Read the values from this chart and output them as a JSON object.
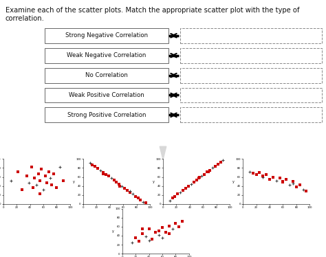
{
  "title_text": "Examine each of the scatter plots. Match the appropriate scatter plot with the type of\ncorrelation.",
  "labels": [
    "Strong Negative Correlation",
    "Weak Negative Correlation",
    "No Correlation",
    "Weak Positive Correlation",
    "Strong Positive Correlation"
  ],
  "top_bg": "#ffffff",
  "bottom_bg": "#d8d8d8",
  "fig_bg": "#ffffff",
  "scatter_red": "#cc0000",
  "scatter_cross": "#555555",
  "plots_order": [
    "no_corr",
    "strong_neg",
    "strong_pos",
    "weak_neg",
    "weak_pos"
  ],
  "plots": {
    "no_corr": {
      "x": [
        12,
        22,
        28,
        35,
        38,
        42,
        45,
        47,
        50,
        53,
        55,
        57,
        60,
        63,
        65,
        68,
        70,
        72,
        75,
        80,
        85,
        90,
        55
      ],
      "y": [
        52,
        72,
        32,
        62,
        47,
        82,
        37,
        57,
        42,
        67,
        52,
        77,
        32,
        62,
        47,
        72,
        57,
        42,
        67,
        37,
        82,
        52,
        22
      ]
    },
    "strong_neg": {
      "x": [
        10,
        14,
        18,
        22,
        26,
        30,
        34,
        38,
        42,
        46,
        50,
        54,
        58,
        62,
        66,
        70,
        74,
        78,
        82,
        86,
        90,
        94,
        30,
        55,
        70
      ],
      "y": [
        92,
        87,
        83,
        79,
        74,
        70,
        66,
        62,
        57,
        53,
        48,
        44,
        40,
        35,
        31,
        26,
        22,
        17,
        13,
        9,
        5,
        2,
        67,
        40,
        28
      ]
    },
    "strong_pos": {
      "x": [
        10,
        14,
        18,
        22,
        26,
        30,
        34,
        38,
        42,
        46,
        50,
        54,
        58,
        62,
        66,
        70,
        74,
        78,
        82,
        86,
        90,
        55,
        68
      ],
      "y": [
        8,
        13,
        17,
        22,
        26,
        31,
        35,
        40,
        44,
        48,
        53,
        57,
        62,
        66,
        71,
        75,
        80,
        84,
        89,
        93,
        97,
        60,
        72
      ]
    },
    "weak_neg": {
      "x": [
        10,
        15,
        20,
        25,
        30,
        35,
        40,
        45,
        50,
        55,
        60,
        65,
        70,
        75,
        80,
        85,
        90,
        95,
        30,
        60,
        75
      ],
      "y": [
        72,
        68,
        65,
        70,
        60,
        66,
        55,
        60,
        52,
        58,
        48,
        55,
        43,
        50,
        38,
        42,
        32,
        28,
        63,
        50,
        45
      ]
    },
    "weak_pos": {
      "x": [
        15,
        20,
        25,
        30,
        35,
        40,
        45,
        50,
        55,
        60,
        65,
        70,
        75,
        80,
        85,
        90,
        40,
        55,
        70,
        30,
        60
      ],
      "y": [
        25,
        35,
        28,
        45,
        38,
        55,
        32,
        48,
        42,
        58,
        48,
        62,
        55,
        68,
        60,
        72,
        30,
        50,
        45,
        55,
        35
      ]
    }
  }
}
